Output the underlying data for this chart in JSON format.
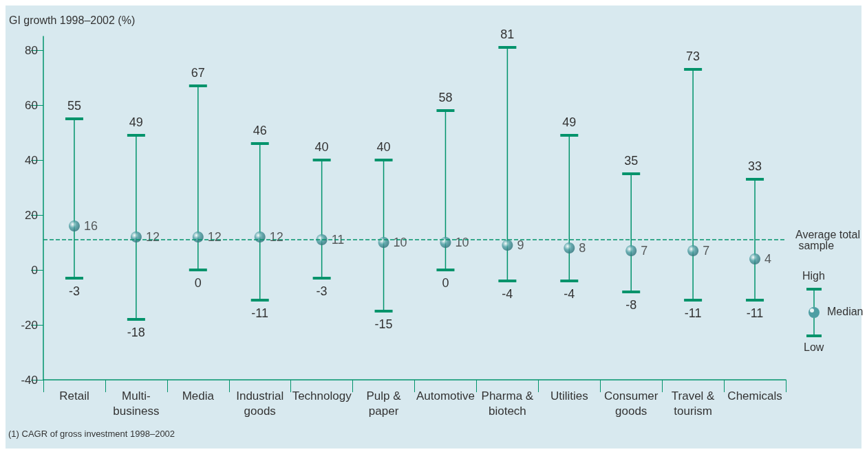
{
  "chart_data": {
    "type": "scatter",
    "ylabel": "GI growth 1998–2002 (%)",
    "categories": [
      "Retail",
      "Multi-\nbusiness",
      "Media",
      "Industrial\ngoods",
      "Technology",
      "Pulp &\npaper",
      "Automotive",
      "Pharma &\nbiotech",
      "Utilities",
      "Consumer\ngoods",
      "Travel &\ntourism",
      "Chemicals"
    ],
    "values": [
      16,
      12,
      12,
      12,
      11,
      10,
      10,
      9,
      8,
      7,
      7,
      4
    ],
    "errors": [
      [
        -3,
        55
      ],
      [
        -18,
        49
      ],
      [
        0,
        67
      ],
      [
        -11,
        46
      ],
      [
        -3,
        40
      ],
      [
        -15,
        40
      ],
      [
        0,
        58
      ],
      [
        -4,
        81
      ],
      [
        -4,
        49
      ],
      [
        -8,
        35
      ],
      [
        -11,
        73
      ],
      [
        -11,
        33
      ]
    ],
    "color": "#4e9ea3",
    "marker": "circle",
    "data_labels": true,
    "ylim": [
      -40,
      85
    ],
    "yticks": [
      -40,
      -20,
      0,
      20,
      40,
      60,
      80
    ],
    "grid": false,
    "ref_lines": [
      {
        "axis": "y",
        "value": 11,
        "label": "Average total sample",
        "line_style": "dashed",
        "color": "#00936b"
      }
    ],
    "annotations": [
      "High",
      "Median",
      "Low",
      "(1) CAGR of gross investment 1998–2002",
      {
        "text": "55",
        "x": "Retail",
        "y": 55
      },
      {
        "text": "-3",
        "x": "Retail",
        "y": -3
      },
      {
        "text": "49",
        "x": "Multi-\nbusiness",
        "y": 49
      },
      {
        "text": "-18",
        "x": "Multi-\nbusiness",
        "y": -18
      },
      {
        "text": "67",
        "x": "Media",
        "y": 67
      },
      {
        "text": "0",
        "x": "Media",
        "y": 0
      },
      {
        "text": "46",
        "x": "Industrial\ngoods",
        "y": 46
      },
      {
        "text": "-11",
        "x": "Industrial\ngoods",
        "y": -11
      },
      {
        "text": "40",
        "x": "Technology",
        "y": 40
      },
      {
        "text": "-3",
        "x": "Technology",
        "y": -3
      },
      {
        "text": "40",
        "x": "Pulp &\npaper",
        "y": 40
      },
      {
        "text": "-15",
        "x": "Pulp &\npaper",
        "y": -15
      },
      {
        "text": "58",
        "x": "Automotive",
        "y": 58
      },
      {
        "text": "0",
        "x": "Automotive",
        "y": 0
      },
      {
        "text": "81",
        "x": "Pharma &\nbiotech",
        "y": 81
      },
      {
        "text": "-4",
        "x": "Pharma &\nbiotech",
        "y": -4
      },
      {
        "text": "49",
        "x": "Utilities",
        "y": 49
      },
      {
        "text": "-4",
        "x": "Utilities",
        "y": -4
      },
      {
        "text": "35",
        "x": "Consumer\ngoods",
        "y": 35
      },
      {
        "text": "-8",
        "x": "Consumer\ngoods",
        "y": -8
      },
      {
        "text": "73",
        "x": "Travel &\ntourism",
        "y": 73
      },
      {
        "text": "-11",
        "x": "Travel &\ntourism",
        "y": -11
      },
      {
        "text": "33",
        "x": "Chemicals",
        "y": 33
      },
      {
        "text": "-11",
        "x": "Chemicals",
        "y": -11
      }
    ]
  }
}
